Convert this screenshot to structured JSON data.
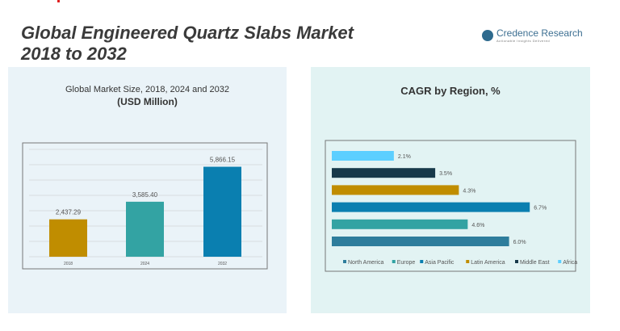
{
  "header": {
    "title_line1": "Global Engineered Quartz Slabs Market",
    "title_line2": "2018 to 2032",
    "logo_name": "Credence Research",
    "logo_tagline": "Actionable Insights Delivered"
  },
  "chart_data": [
    {
      "type": "bar",
      "title": "Global Market Size, 2018, 2024 and 2032",
      "subtitle": "(USD Million)",
      "categories": [
        "2018",
        "2024",
        "2032"
      ],
      "values": [
        2437.29,
        3585.4,
        5866.15
      ],
      "labels": [
        "2,437.29",
        "3,585.40",
        "5,866.15"
      ],
      "colors": [
        "#c08d00",
        "#33a3a3",
        "#0a7fb0"
      ],
      "ylim": [
        0,
        7000
      ],
      "grid": true
    },
    {
      "type": "bar",
      "orientation": "horizontal",
      "title": "CAGR by Region, %",
      "categories": [
        "Africa",
        "Middle East",
        "Latin America",
        "Asia Pacific",
        "Europe",
        "North America"
      ],
      "values": [
        2.1,
        3.5,
        4.3,
        6.7,
        4.6,
        6.0
      ],
      "labels": [
        "2.1%",
        "3.5%",
        "4.3%",
        "6.7%",
        "4.6%",
        "6.0%"
      ],
      "colors": [
        "#5ccfff",
        "#17394a",
        "#c08d00",
        "#0a7fb0",
        "#33a3a3",
        "#2e7d9c"
      ],
      "legend": [
        "North America",
        "Europe",
        "Asia Pacific",
        "Latin America",
        "Middle East",
        "Africa"
      ],
      "legend_colors": [
        "#2e7d9c",
        "#33a3a3",
        "#0a7fb0",
        "#c08d00",
        "#17394a",
        "#5ccfff"
      ],
      "legend_position": "bottom",
      "grid": false
    }
  ]
}
